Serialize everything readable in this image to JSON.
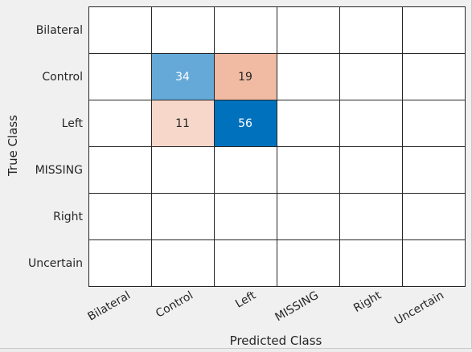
{
  "chart_data": {
    "type": "heatmap",
    "xlabel": "Predicted Class",
    "ylabel": "True Class",
    "x_categories": [
      "Bilateral",
      "Control",
      "Left",
      "MISSING",
      "Right",
      "Uncertain"
    ],
    "y_categories": [
      "Bilateral",
      "Control",
      "Left",
      "MISSING",
      "Right",
      "Uncertain"
    ],
    "matrix": [
      [
        null,
        null,
        null,
        null,
        null,
        null
      ],
      [
        null,
        34,
        19,
        null,
        null,
        null
      ],
      [
        null,
        11,
        56,
        null,
        null,
        null
      ],
      [
        null,
        null,
        null,
        null,
        null,
        null
      ],
      [
        null,
        null,
        null,
        null,
        null,
        null
      ],
      [
        null,
        null,
        null,
        null,
        null,
        null
      ]
    ],
    "colors": {
      "correct_max": "#0072bd",
      "error_max": "#d95319",
      "empty": "#ffffff",
      "grid": "#262626"
    },
    "grid": true
  }
}
